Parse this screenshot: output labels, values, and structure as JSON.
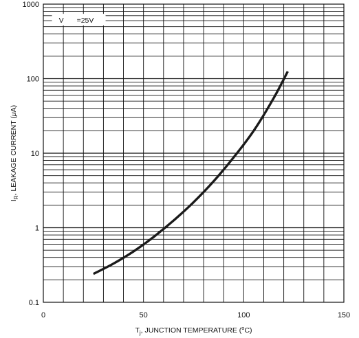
{
  "chart_data": {
    "type": "line",
    "x_axis": {
      "label_main": "T",
      "label_sub": "j",
      "label_rest": ", JUNCTION TEMPERATURE (",
      "label_deg": "o",
      "label_end": "C)",
      "range": [
        0,
        150
      ],
      "ticks": [
        0,
        50,
        100,
        150
      ],
      "tick_labels": [
        "0",
        "50",
        "100",
        "150"
      ],
      "minor_step": 10
    },
    "y_axis": {
      "label_main": "I",
      "label_sub": "R",
      "label_rest": ", LEAKAGE CURRENT (",
      "label_mu": "μ",
      "label_end": "A)",
      "scale": "log",
      "range": [
        0.1,
        1000
      ],
      "ticks": [
        0.1,
        1,
        10,
        100,
        1000
      ],
      "tick_labels": [
        "0.1",
        "1",
        "10",
        "100",
        "1000"
      ]
    },
    "annotation": {
      "text_v": "V",
      "text_value": "=25V",
      "data_x": 5,
      "data_y": 600
    },
    "grid": true,
    "series": [
      {
        "color": "#1a1a1a",
        "points": [
          {
            "x": 25,
            "y": 0.24
          },
          {
            "x": 35,
            "y": 0.33
          },
          {
            "x": 45,
            "y": 0.48
          },
          {
            "x": 55,
            "y": 0.75
          },
          {
            "x": 65,
            "y": 1.25
          },
          {
            "x": 75,
            "y": 2.2
          },
          {
            "x": 85,
            "y": 4.2
          },
          {
            "x": 95,
            "y": 8.8
          },
          {
            "x": 105,
            "y": 20
          },
          {
            "x": 115,
            "y": 55
          },
          {
            "x": 122,
            "y": 125
          }
        ]
      }
    ]
  }
}
